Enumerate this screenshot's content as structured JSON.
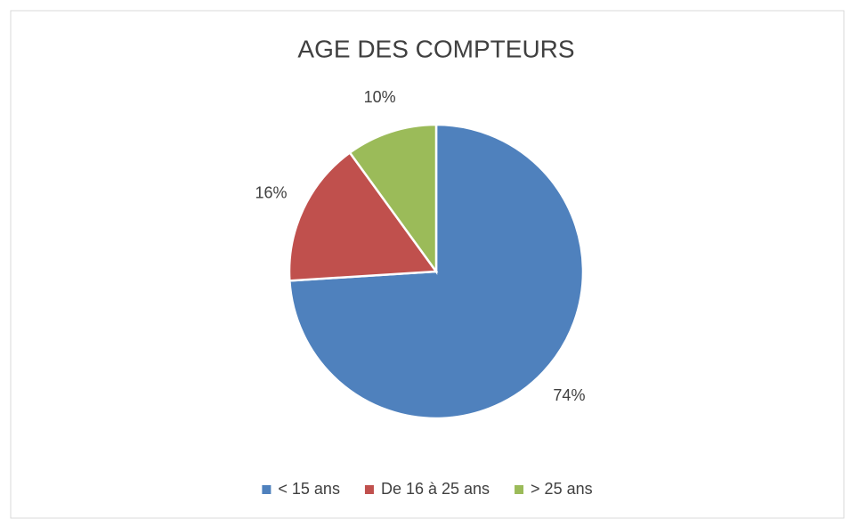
{
  "chart_data": {
    "type": "pie",
    "title": "AGE DES COMPTEURS",
    "categories": [
      "< 15 ans",
      "De 16 à 25 ans",
      "> 25 ans"
    ],
    "values": [
      74,
      16,
      10
    ],
    "value_labels": [
      "74%",
      "16%",
      "10%"
    ],
    "colors": [
      "#4f81bd",
      "#c0504d",
      "#9bbb59"
    ],
    "legend": "bottom"
  }
}
